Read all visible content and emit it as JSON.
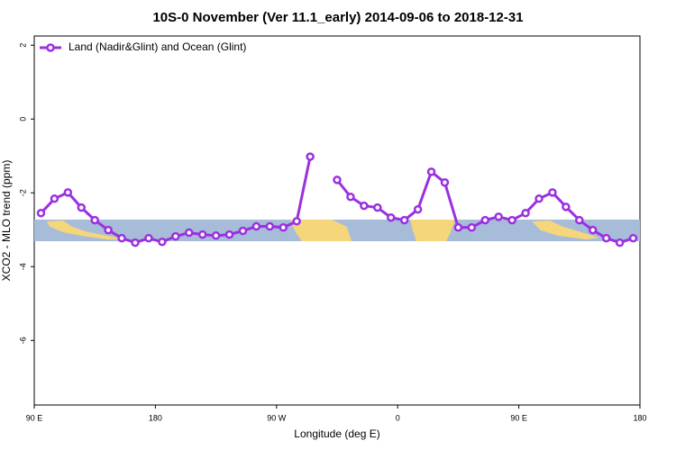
{
  "chart_data": {
    "type": "line",
    "title": "10S-0 November (Ver 11.1_early)   2014-09-06 to 2018-12-31",
    "x_label": "Longitude (deg E)",
    "y_label": "XCO2 - MLO trend (ppm)",
    "x": [
      95,
      105,
      115,
      125,
      135,
      145,
      155,
      165,
      175,
      185,
      195,
      205,
      215,
      225,
      235,
      245,
      255,
      265,
      275,
      285,
      295,
      305,
      315,
      325,
      335,
      345,
      355,
      365,
      375,
      385,
      395,
      405,
      415,
      425,
      435,
      445,
      455,
      465,
      475,
      485,
      495,
      505,
      515,
      525,
      535
    ],
    "series": [
      {
        "name": "Land (Nadir&Glint) and Ocean (Glint)",
        "color": "#9b30e0",
        "values": [
          -2.55,
          -2.16,
          -1.99,
          -2.4,
          -2.74,
          -3.01,
          -3.23,
          -3.35,
          -3.23,
          -3.33,
          -3.18,
          -3.08,
          -3.13,
          -3.16,
          -3.13,
          -3.03,
          -2.91,
          -2.91,
          -2.94,
          -2.77,
          -1.02,
          null,
          -1.65,
          -2.11,
          -2.35,
          -2.4,
          -2.67,
          -2.74,
          -2.45,
          -1.43,
          -1.72,
          -2.94,
          -2.94,
          -2.74,
          -2.65,
          -2.74,
          -2.55,
          -2.16,
          -1.99,
          -2.38,
          -2.74,
          -3.01,
          -3.23,
          -3.35,
          -3.23
        ]
      }
    ],
    "xlim": [
      90,
      540
    ],
    "xticks": [
      {
        "value": 90,
        "label": "90 E"
      },
      {
        "value": 180,
        "label": "180"
      },
      {
        "value": 270,
        "label": "90 W"
      },
      {
        "value": 360,
        "label": "0"
      },
      {
        "value": 450,
        "label": "90 E"
      },
      {
        "value": 540,
        "label": "180"
      }
    ],
    "ylim": [
      -7.75,
      2.25
    ],
    "yticks": [
      2,
      0,
      -2,
      -4,
      -6
    ],
    "legend": "top-left"
  }
}
